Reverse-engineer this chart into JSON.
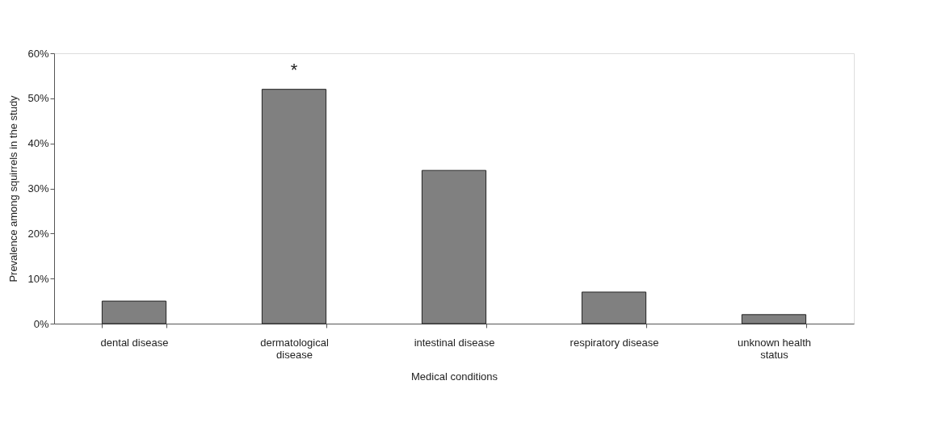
{
  "chart_data": {
    "type": "bar",
    "xlabel": "Medical conditions",
    "ylabel": "Prevalence among squirrels in the study",
    "categories": [
      "dental disease",
      "dermatological disease",
      "intestinal disease",
      "respiratory disease",
      "unknown health status"
    ],
    "values": [
      5,
      52,
      34,
      7,
      2
    ],
    "color": "#808080",
    "ylim": [
      0,
      60
    ],
    "yticks": [
      {
        "value": 0,
        "label": "0%"
      },
      {
        "value": 10,
        "label": "10%"
      },
      {
        "value": 20,
        "label": "20%"
      },
      {
        "value": 30,
        "label": "30%"
      },
      {
        "value": 40,
        "label": "40%"
      },
      {
        "value": 50,
        "label": "50%"
      },
      {
        "value": 60,
        "label": "60%"
      }
    ],
    "annotations": [
      {
        "text": "*",
        "x": "dermatological disease",
        "y": 52
      }
    ],
    "grid": false
  }
}
